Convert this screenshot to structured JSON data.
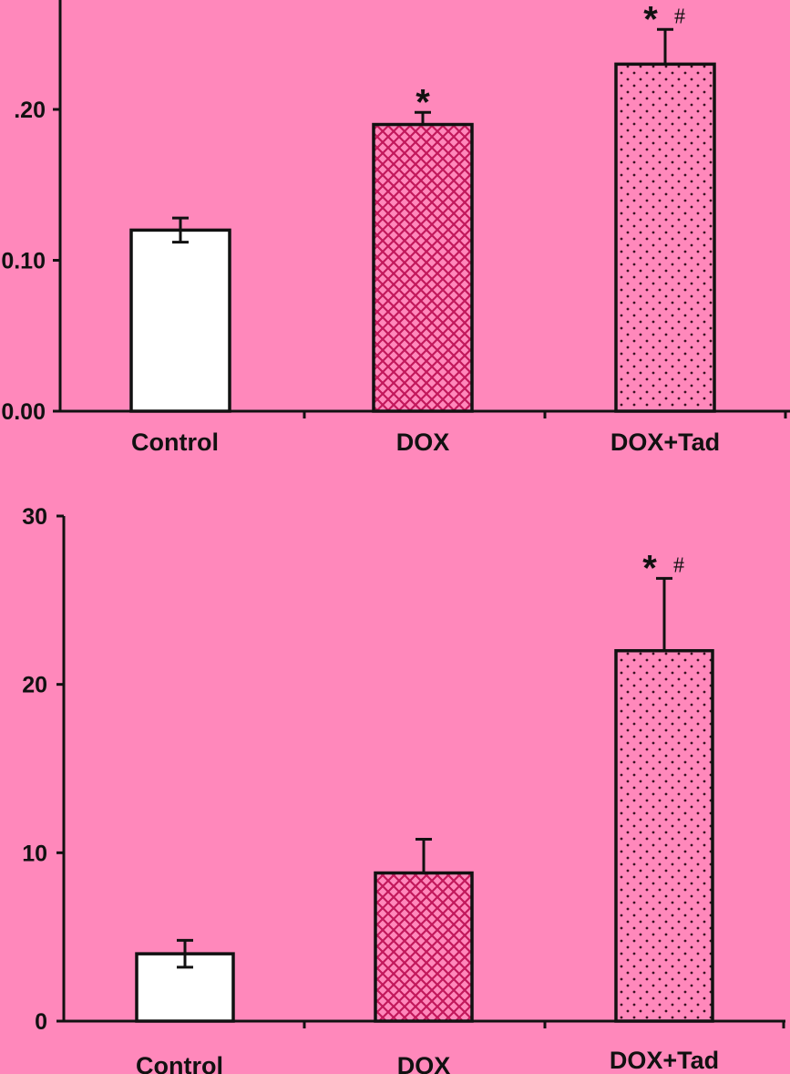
{
  "background_color": "#ff88bb",
  "chart_data": [
    {
      "type": "bar",
      "categories": [
        "Control",
        "DOX",
        "DOX+Tad"
      ],
      "values": [
        0.12,
        0.19,
        0.23
      ],
      "errors": [
        0.008,
        0.008,
        0.023
      ],
      "ytick_labels": [
        ".20",
        "0.10",
        "0.00"
      ],
      "ytick_values": [
        0.2,
        0.1,
        0.0
      ],
      "annotations": [
        "",
        "*",
        "* #"
      ],
      "fills": [
        "blank",
        "crosshatch",
        "dots"
      ],
      "grid": false,
      "legend": "none"
    },
    {
      "type": "bar",
      "categories": [
        "Control",
        "DOX",
        "DOX+Tad"
      ],
      "values": [
        4.0,
        8.8,
        22.0
      ],
      "errors": [
        0.8,
        2.0,
        4.3
      ],
      "ylim": [
        0,
        30
      ],
      "ytick_labels": [
        "30",
        "20",
        "10",
        "0"
      ],
      "ytick_values": [
        30,
        20,
        10,
        0
      ],
      "annotations": [
        "",
        "",
        "* #"
      ],
      "fills": [
        "blank",
        "crosshatch",
        "dots"
      ],
      "grid": false,
      "legend": "none"
    }
  ]
}
